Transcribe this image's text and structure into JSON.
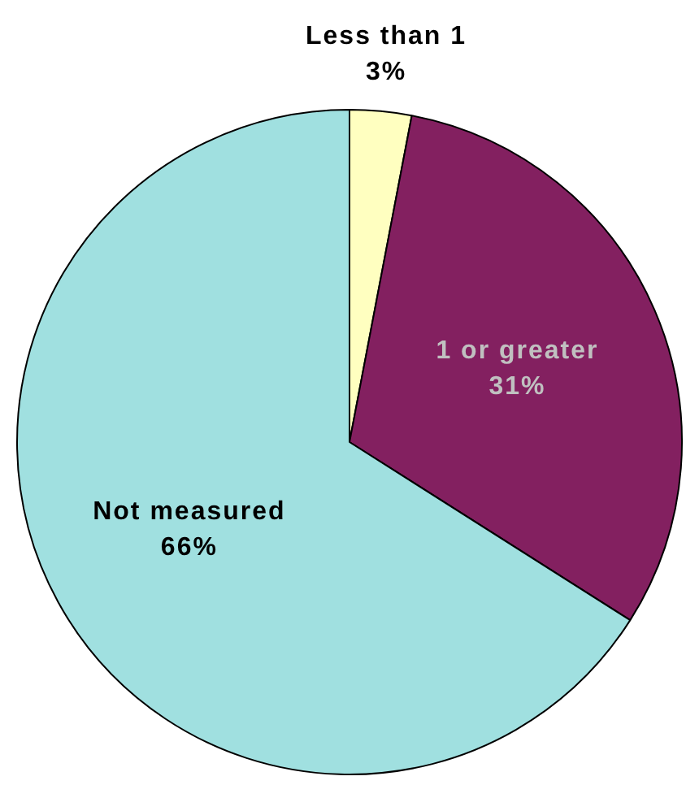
{
  "chart_data": {
    "type": "pie",
    "categories": [
      "Less than 1",
      "1 or greater",
      "Not measured"
    ],
    "values": [
      3,
      31,
      66
    ],
    "value_labels": [
      "3%",
      "31%",
      "66%"
    ],
    "colors": [
      "#ffffc0",
      "#832060",
      "#a0e0e0"
    ],
    "legend": false
  }
}
